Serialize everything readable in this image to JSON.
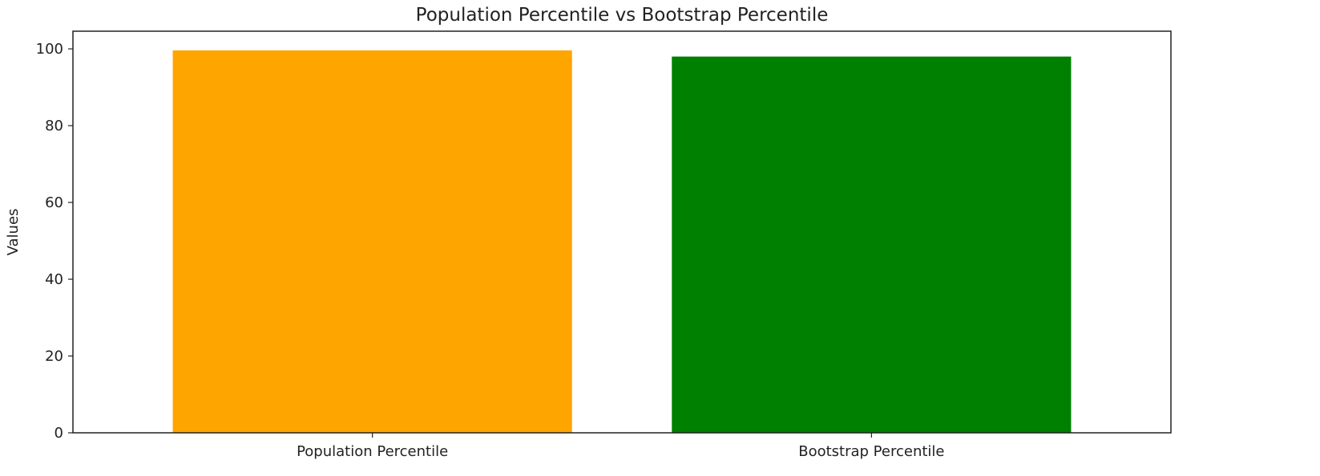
{
  "chart_data": {
    "type": "bar",
    "title": "Population Percentile vs Bootstrap Percentile",
    "xlabel": "",
    "ylabel": "Values",
    "categories": [
      "Population Percentile",
      "Bootstrap Percentile"
    ],
    "values": [
      99.6,
      98.0
    ],
    "colors": [
      "#ffa500",
      "#008000"
    ],
    "ylim": [
      0,
      104.6
    ],
    "yticks": [
      0,
      20,
      40,
      60,
      80,
      100
    ],
    "grid": false
  }
}
